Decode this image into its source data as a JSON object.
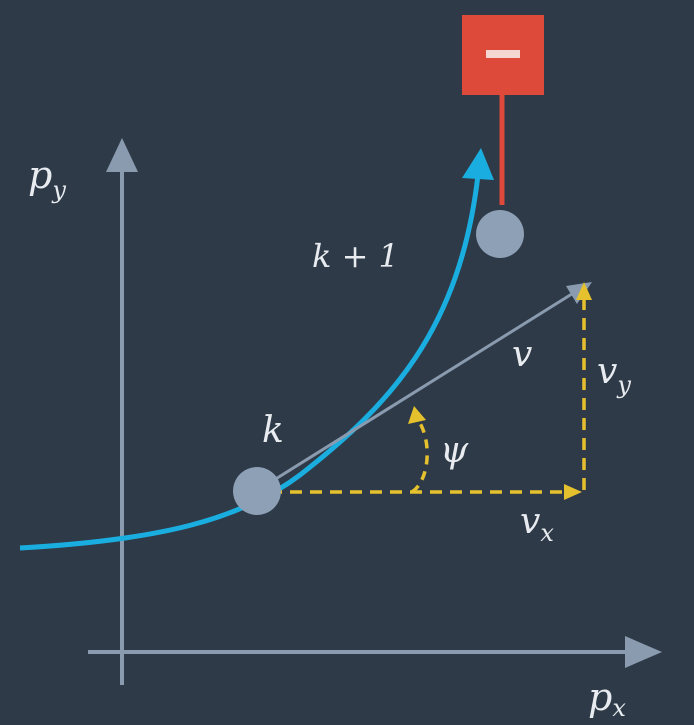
{
  "labels": {
    "py": "p",
    "py_sub": "y",
    "px": "p",
    "px_sub": "x",
    "k": "k",
    "k_plus_1": "k + 1",
    "v": "v",
    "vy": "v",
    "vy_sub": "y",
    "vx": "v",
    "vx_sub": "x",
    "psi": "ψ",
    "minus_sign": "−"
  },
  "colors": {
    "background": "#2e3a47",
    "axis": "#8a9bb0",
    "trajectory": "#1aaee0",
    "velocity_vector": "#8a9bb0",
    "components": "#e5c12e",
    "point": "#8ea0b6",
    "label": "#e8ecf0",
    "marker": "#dd4a3a"
  }
}
